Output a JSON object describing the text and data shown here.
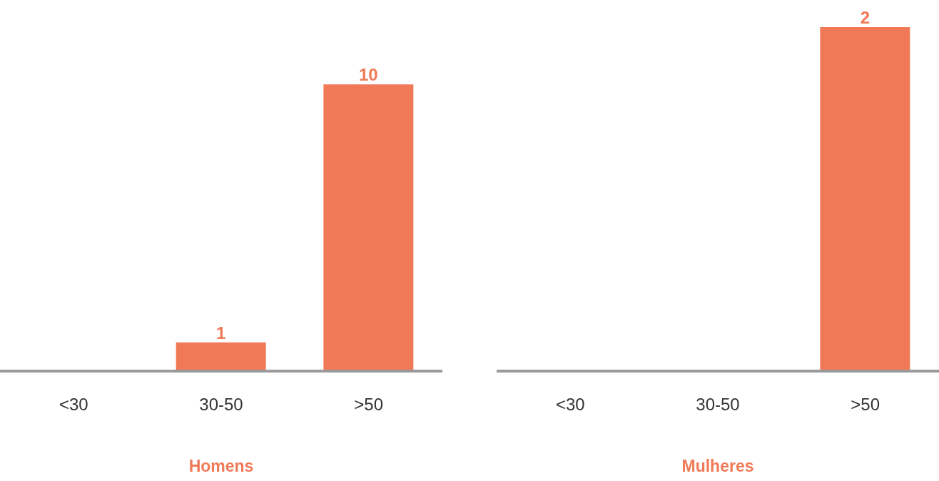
{
  "chart_data": [
    {
      "type": "bar",
      "title": "Homens",
      "categories": [
        "<30",
        "30-50",
        ">50"
      ],
      "values": [
        null,
        1,
        10
      ],
      "color": "#f07a58",
      "data_labels": true,
      "grid": false,
      "legend": false
    },
    {
      "type": "bar",
      "title": "Mulheres",
      "categories": [
        "<30",
        "30-50",
        ">50"
      ],
      "values": [
        null,
        null,
        2
      ],
      "color": "#f07a58",
      "data_labels": true,
      "grid": false,
      "legend": false
    }
  ]
}
